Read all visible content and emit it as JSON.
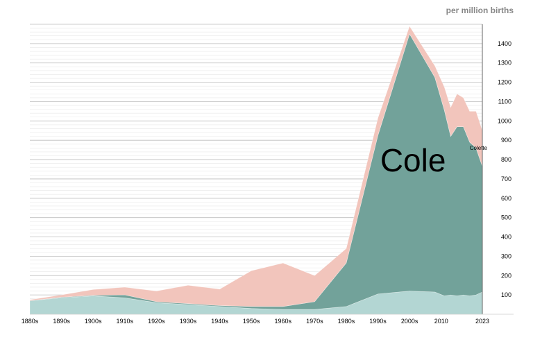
{
  "chart_data": {
    "type": "area",
    "stacked": true,
    "unit_label": "per million births",
    "x": [
      1880,
      1890,
      1900,
      1910,
      1920,
      1930,
      1940,
      1950,
      1960,
      1970,
      1980,
      1990,
      2000,
      2008,
      2011,
      2013,
      2015,
      2017,
      2019,
      2021,
      2023
    ],
    "x_ticks": [
      {
        "value": 1880,
        "label": "1880s"
      },
      {
        "value": 1890,
        "label": "1890s"
      },
      {
        "value": 1900,
        "label": "1900s"
      },
      {
        "value": 1910,
        "label": "1910s"
      },
      {
        "value": 1920,
        "label": "1920s"
      },
      {
        "value": 1930,
        "label": "1930s"
      },
      {
        "value": 1940,
        "label": "1940s"
      },
      {
        "value": 1950,
        "label": "1950s"
      },
      {
        "value": 1960,
        "label": "1960s"
      },
      {
        "value": 1970,
        "label": "1970s"
      },
      {
        "value": 1980,
        "label": "1980s"
      },
      {
        "value": 1990,
        "label": "1990s"
      },
      {
        "value": 2000,
        "label": "2000s"
      },
      {
        "value": 2010,
        "label": "2010"
      },
      {
        "value": 2023,
        "label": "2023"
      }
    ],
    "y_ticks": [
      100,
      200,
      300,
      400,
      500,
      600,
      700,
      800,
      900,
      1000,
      1100,
      1200,
      1300,
      1400
    ],
    "ylim": [
      0,
      1500
    ],
    "xlim": [
      1880,
      2023
    ],
    "series": [
      {
        "color": "#b3d6d3",
        "values": [
          70,
          85,
          95,
          85,
          60,
          50,
          40,
          30,
          25,
          25,
          40,
          105,
          120,
          115,
          95,
          100,
          95,
          100,
          95,
          100,
          115
        ]
      },
      {
        "color": "#72a29a",
        "values": [
          0,
          3,
          3,
          15,
          5,
          5,
          5,
          10,
          15,
          40,
          225,
          820,
          1330,
          1110,
          960,
          820,
          875,
          870,
          795,
          760,
          650
        ]
      },
      {
        "color": "#f2c5bc",
        "values": [
          5,
          12,
          30,
          40,
          55,
          95,
          85,
          185,
          225,
          135,
          75,
          90,
          40,
          60,
          120,
          150,
          170,
          150,
          160,
          190,
          185
        ]
      }
    ],
    "annotations": [
      {
        "text": "Cole",
        "x": 2000,
        "y": 740,
        "size": "large"
      },
      {
        "text": "Colette",
        "x": 2019,
        "y": 850,
        "size": "small"
      }
    ]
  }
}
